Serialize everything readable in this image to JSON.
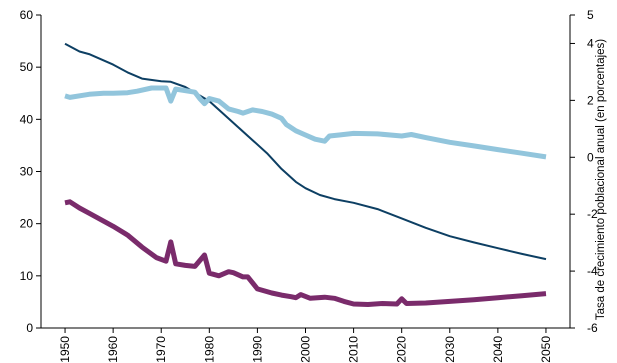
{
  "chart_data": {
    "type": "line",
    "title": "",
    "xlabel": "",
    "ylabel_left": "",
    "ylabel_right": "Tasa de crecimiento poblacional anual (en porcentajes)",
    "xlim": [
      1945,
      2055
    ],
    "ylim_left": [
      0,
      60
    ],
    "ylim_right": [
      -6,
      5
    ],
    "x_ticks": [
      1950,
      1960,
      1970,
      1980,
      1990,
      2000,
      2010,
      2020,
      2030,
      2040,
      2050
    ],
    "y_ticks_left": [
      0,
      10,
      20,
      30,
      40,
      50,
      60
    ],
    "y_ticks_right": [
      -6,
      -4,
      -2,
      0,
      2,
      4,
      5
    ],
    "grid": false,
    "series": [
      {
        "axis": "left",
        "color": "#0d3f63",
        "x": [
          1950,
          1953,
          1955,
          1960,
          1963,
          1966,
          1970,
          1972,
          1975,
          1980,
          1983,
          1986,
          1989,
          1992,
          1995,
          1998,
          2000,
          2003,
          2006,
          2010,
          2015,
          2020,
          2025,
          2030,
          2035,
          2040,
          2045,
          2050
        ],
        "values": [
          54.5,
          53,
          52.5,
          50.5,
          49,
          47.8,
          47.3,
          47.2,
          46.2,
          43.5,
          41,
          38.5,
          36,
          33.5,
          30.5,
          28,
          26.8,
          25.5,
          24.7,
          24,
          22.8,
          21,
          19.2,
          17.6,
          16.4,
          15.3,
          14.2,
          13.2
        ]
      },
      {
        "axis": "left",
        "color": "#92c5dc",
        "x": [
          1950,
          1951,
          1955,
          1958,
          1960,
          1963,
          1965,
          1968,
          1971,
          1972,
          1973,
          1975,
          1977,
          1978,
          1979,
          1980,
          1982,
          1984,
          1986,
          1987,
          1989,
          1991,
          1993,
          1995,
          1996,
          1998,
          2000,
          2002,
          2004,
          2005,
          2007,
          2010,
          2015,
          2020,
          2022,
          2025,
          2030,
          2035,
          2040,
          2045,
          2050
        ],
        "values": [
          44.5,
          44.2,
          44.8,
          45,
          45,
          45.1,
          45.4,
          46,
          46,
          43.5,
          45.8,
          45.5,
          45.2,
          44,
          43,
          44,
          43.5,
          42,
          41.5,
          41.2,
          41.8,
          41.5,
          41,
          40.2,
          39,
          37.8,
          37,
          36.2,
          35.8,
          36.8,
          37,
          37.3,
          37.2,
          36.8,
          37.1,
          36.5,
          35.6,
          34.9,
          34.2,
          33.5,
          32.8
        ]
      },
      {
        "axis": "left",
        "color": "#7a2b6b",
        "x": [
          1950,
          1951,
          1953,
          1955,
          1958,
          1960,
          1963,
          1966,
          1969,
          1971,
          1972,
          1973,
          1975,
          1977,
          1979,
          1980,
          1982,
          1984,
          1985,
          1987,
          1988,
          1990,
          1993,
          1995,
          1997,
          1998,
          1999,
          2001,
          2004,
          2006,
          2008,
          2010,
          2013,
          2016,
          2019,
          2020,
          2021,
          2025,
          2030,
          2035,
          2040,
          2045,
          2050
        ],
        "values": [
          24,
          24.2,
          23,
          22,
          20.5,
          19.5,
          17.8,
          15.5,
          13.5,
          12.8,
          16.5,
          12.3,
          12,
          11.8,
          14,
          10.5,
          10,
          10.8,
          10.6,
          9.8,
          9.8,
          7.5,
          6.7,
          6.3,
          6,
          5.8,
          6.4,
          5.7,
          5.9,
          5.7,
          5.1,
          4.6,
          4.5,
          4.7,
          4.6,
          5.6,
          4.7,
          4.8,
          5.1,
          5.4,
          5.8,
          6.2,
          6.6
        ]
      }
    ]
  }
}
